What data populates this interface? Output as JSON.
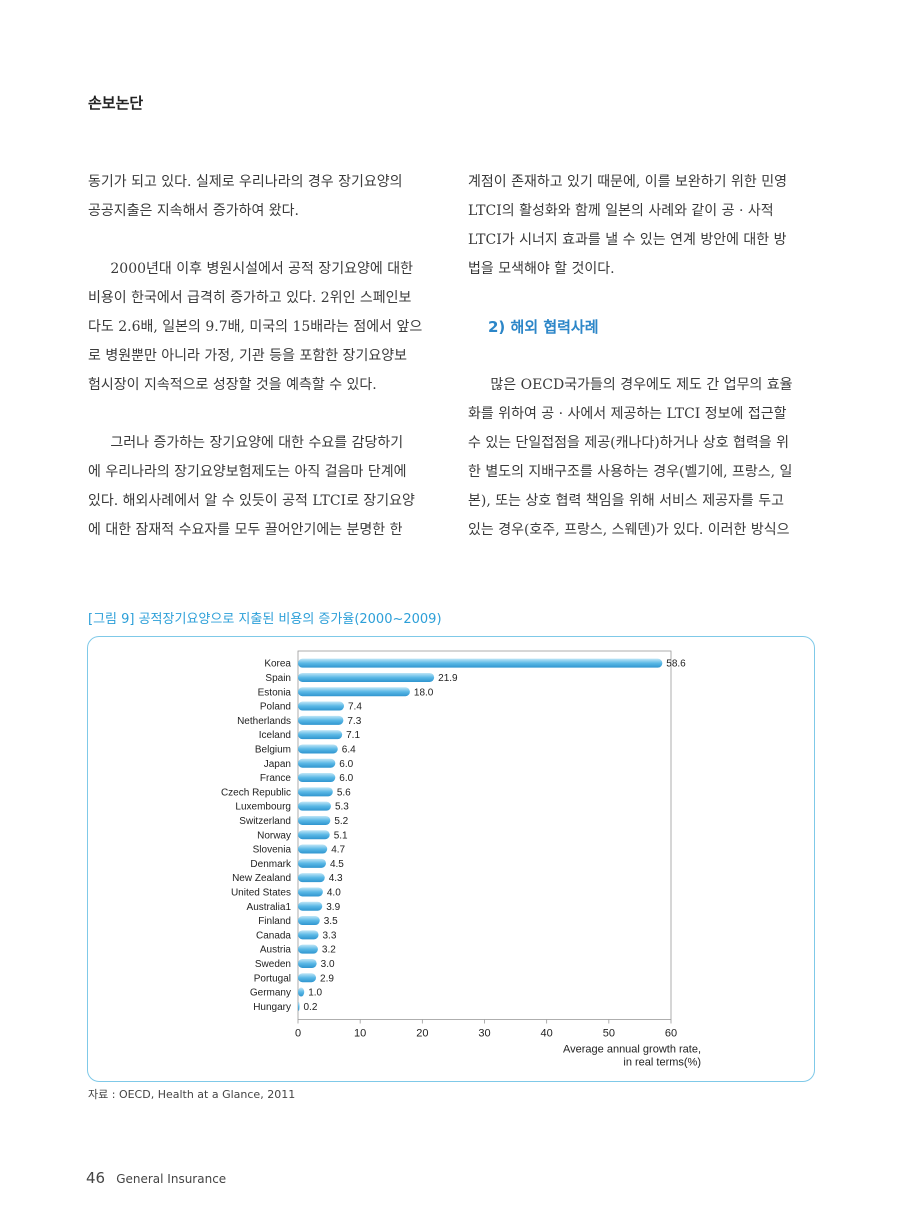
{
  "header": {
    "title": "손보논단"
  },
  "left_column": {
    "paragraphs": [
      [
        "동기가 되고 있다. 실제로 우리나라의 경우 장기요양의",
        "공공지출은 지속해서 증가하여 왔다."
      ],
      [
        "2000년대 이후 병원시설에서 공적 장기요양에 대한",
        "비용이 한국에서 급격히 증가하고 있다. 2위인 스페인보",
        "다도 2.6배, 일본의 9.7배, 미국의 15배라는 점에서 앞으",
        "로 병원뿐만 아니라 가정, 기관 등을 포함한 장기요양보",
        "험시장이 지속적으로 성장할 것을 예측할 수 있다."
      ],
      [
        "그러나 증가하는 장기요양에 대한 수요를 감당하기",
        "에 우리나라의 장기요양보험제도는 아직 걸음마 단계에",
        "있다. 해외사례에서 알 수 있듯이 공적 LTCI로 장기요양",
        "에 대한 잠재적 수요자를 모두 끌어안기에는 분명한 한"
      ]
    ]
  },
  "right_column": {
    "para1": [
      "계점이 존재하고 있기 때문에, 이를 보완하기 위한 민영",
      "LTCI의 활성화와 함께 일본의 사례와 같이 공 · 사적",
      "LTCI가 시너지 효과를 낼 수 있는 연계 방안에 대한 방",
      "법을 모색해야 할 것이다."
    ],
    "subheading": "2) 해외 협력사례",
    "para2": [
      "많은 OECD국가들의 경우에도 제도 간 업무의 효율",
      "화를 위하여 공 · 사에서 제공하는 LTCI 정보에 접근할",
      "수 있는 단일접점을 제공(캐나다)하거나 상호 협력을 위",
      "한 별도의 지배구조를 사용하는 경우(벨기에, 프랑스, 일",
      "본), 또는 상호 협력 책임을 위해 서비스 제공자를 두고",
      "있는 경우(호주, 프랑스, 스웨덴)가 있다. 이러한 방식으"
    ]
  },
  "figure": {
    "title": "[그림 9] 공적장기요양으로 지출된 비용의 증가율(2000~2009)",
    "source": "자료 : OECD, Health at a Glance, 2011"
  },
  "chart_data": {
    "type": "bar",
    "orientation": "horizontal",
    "categories": [
      "Korea",
      "Spain",
      "Estonia",
      "Poland",
      "Netherlands",
      "Iceland",
      "Belgium",
      "Japan",
      "France",
      "Czech Republic",
      "Luxembourg",
      "Switzerland",
      "Norway",
      "Slovenia",
      "Denmark",
      "New Zealand",
      "United States",
      "Australia1",
      "Finland",
      "Canada",
      "Austria",
      "Sweden",
      "Portugal",
      "Germany",
      "Hungary"
    ],
    "values": [
      58.6,
      21.9,
      18.0,
      7.4,
      7.3,
      7.1,
      6.4,
      6.0,
      6.0,
      5.6,
      5.3,
      5.2,
      5.1,
      4.7,
      4.5,
      4.3,
      4.0,
      3.9,
      3.5,
      3.3,
      3.2,
      3.0,
      2.9,
      1.0,
      0.2
    ],
    "value_labels": [
      "58.6",
      "21.9",
      "18.0",
      "7.4",
      "7.3",
      "7.1",
      "6.4",
      "6.0",
      "6.0",
      "5.6",
      "5.3",
      "5.2",
      "5.1",
      "4.7",
      "4.5",
      "4.3",
      "4.0",
      "3.9",
      "3.5",
      "3.3",
      "3.2",
      "3.0",
      "2.9",
      "1.0",
      "0.2"
    ],
    "xlim": [
      0,
      60
    ],
    "xticks": [
      0,
      10,
      20,
      30,
      40,
      50,
      60
    ],
    "xlabel_lines": [
      "Average annual growth rate,",
      "in real terms(%)"
    ],
    "bar_color": "#5ab8e6",
    "grid": false
  },
  "footer": {
    "page_number": "46",
    "publication": "General Insurance"
  }
}
